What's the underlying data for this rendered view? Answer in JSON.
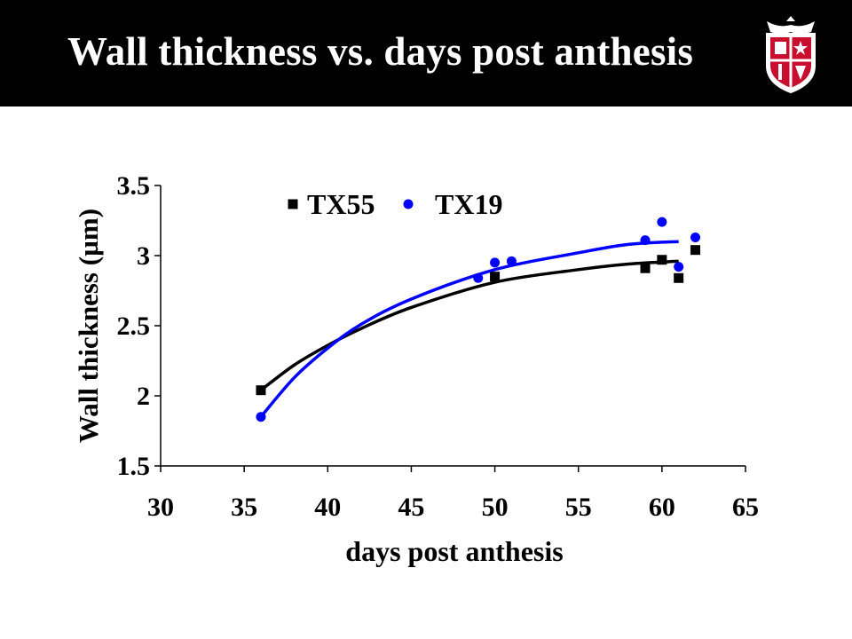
{
  "slide": {
    "title": "Wall thickness vs. days post anthesis"
  },
  "logo": {
    "icon": "university-shield-icon"
  },
  "colors": {
    "header_bg": "#000000",
    "tx55": "#000000",
    "tx19": "#0000ff"
  },
  "chart_data": {
    "type": "scatter",
    "title": "",
    "xlabel": "days post anthesis",
    "ylabel": "Wall thickness (µm)",
    "xlim": [
      30,
      65
    ],
    "ylim": [
      1.5,
      3.5
    ],
    "xticks": [
      "30",
      "35",
      "40",
      "45",
      "50",
      "55",
      "60",
      "65"
    ],
    "yticks": [
      "1.5",
      "2",
      "2.5",
      "3",
      "3.5"
    ],
    "grid": false,
    "legend_position": "top",
    "series": [
      {
        "name": "TX55",
        "marker": "square",
        "color": "#000000",
        "points": [
          [
            36,
            2.04
          ],
          [
            50,
            2.85
          ],
          [
            59,
            2.91
          ],
          [
            60,
            2.97
          ],
          [
            61,
            2.84
          ],
          [
            62,
            3.04
          ]
        ],
        "trendline": [
          [
            36,
            2.04
          ],
          [
            38,
            2.22
          ],
          [
            40,
            2.36
          ],
          [
            42,
            2.48
          ],
          [
            45,
            2.63
          ],
          [
            50,
            2.81
          ],
          [
            55,
            2.9
          ],
          [
            58,
            2.94
          ],
          [
            61,
            2.96
          ]
        ]
      },
      {
        "name": "TX19",
        "marker": "circle",
        "color": "#0000ff",
        "points": [
          [
            36,
            1.85
          ],
          [
            49,
            2.84
          ],
          [
            50,
            2.95
          ],
          [
            51,
            2.96
          ],
          [
            59,
            3.11
          ],
          [
            60,
            3.24
          ],
          [
            61,
            2.92
          ],
          [
            62,
            3.13
          ]
        ],
        "trendline": [
          [
            36,
            1.85
          ],
          [
            38,
            2.13
          ],
          [
            40,
            2.34
          ],
          [
            42,
            2.51
          ],
          [
            45,
            2.69
          ],
          [
            50,
            2.9
          ],
          [
            55,
            3.02
          ],
          [
            58,
            3.08
          ],
          [
            61,
            3.1
          ]
        ]
      }
    ]
  }
}
